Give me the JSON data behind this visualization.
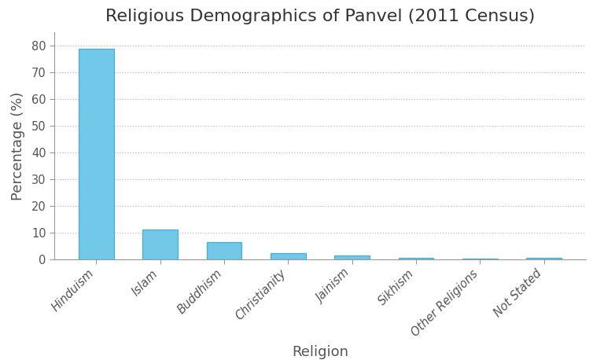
{
  "title": "Religious Demographics of Panvel (2011 Census)",
  "xlabel": "Religion",
  "ylabel": "Percentage (%)",
  "categories": [
    "Hinduism",
    "Islam",
    "Buddhism",
    "Christianity",
    "Jainism",
    "Sikhism",
    "Other Religions",
    "Not Stated"
  ],
  "values": [
    79.0,
    11.0,
    6.3,
    2.2,
    1.3,
    0.5,
    0.1,
    0.6
  ],
  "bar_color": "#72c8e8",
  "bar_edge_color": "#4aaed4",
  "background_color": "#ffffff",
  "plot_bg_color": "#ffffff",
  "grid_color": "#bbbbbb",
  "spine_color": "#999999",
  "text_color": "#555555",
  "ylim": [
    0,
    85
  ],
  "yticks": [
    0,
    10,
    20,
    30,
    40,
    50,
    60,
    70,
    80
  ],
  "title_fontsize": 16,
  "axis_label_fontsize": 13,
  "tick_label_fontsize": 10.5,
  "bar_width": 0.55
}
